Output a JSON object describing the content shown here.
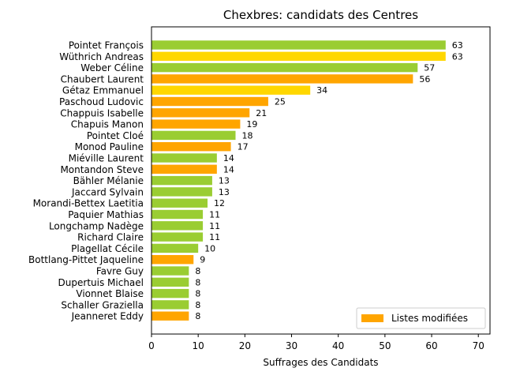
{
  "chart_data": {
    "type": "bar",
    "orientation": "horizontal",
    "title": "Chexbres: candidats des Centres",
    "xlabel": "Suffrages des Candidats",
    "ylabel": "",
    "xlim": [
      0,
      72.5
    ],
    "xticks": [
      0,
      10,
      20,
      30,
      40,
      50,
      60,
      70
    ],
    "grid": false,
    "legend": {
      "placement": "lower-right",
      "entries": [
        {
          "label": "Listes modifiées",
          "color": "#ffa500"
        }
      ]
    },
    "colors": {
      "green": "#9acd32",
      "gold": "#ffd700",
      "orange": "#ffa500"
    },
    "bars": [
      {
        "name": "Pointet François",
        "value": 63,
        "color": "green"
      },
      {
        "name": "Wüthrich Andreas",
        "value": 63,
        "color": "gold"
      },
      {
        "name": "Weber Céline",
        "value": 57,
        "color": "green"
      },
      {
        "name": "Chaubert Laurent",
        "value": 56,
        "color": "orange"
      },
      {
        "name": "Gétaz Emmanuel",
        "value": 34,
        "color": "gold"
      },
      {
        "name": "Paschoud Ludovic",
        "value": 25,
        "color": "orange"
      },
      {
        "name": "Chappuis Isabelle",
        "value": 21,
        "color": "orange"
      },
      {
        "name": "Chapuis Manon",
        "value": 19,
        "color": "orange"
      },
      {
        "name": "Pointet Cloé",
        "value": 18,
        "color": "green"
      },
      {
        "name": "Monod Pauline",
        "value": 17,
        "color": "orange"
      },
      {
        "name": "Miéville Laurent",
        "value": 14,
        "color": "green"
      },
      {
        "name": "Montandon Steve",
        "value": 14,
        "color": "orange"
      },
      {
        "name": "Bähler Mélanie",
        "value": 13,
        "color": "green"
      },
      {
        "name": "Jaccard Sylvain",
        "value": 13,
        "color": "green"
      },
      {
        "name": "Morandi-Bettex Laetitia",
        "value": 12,
        "color": "green"
      },
      {
        "name": "Paquier Mathias",
        "value": 11,
        "color": "green"
      },
      {
        "name": "Longchamp Nadège",
        "value": 11,
        "color": "green"
      },
      {
        "name": "Richard Claire",
        "value": 11,
        "color": "green"
      },
      {
        "name": "Plagellat Cécile",
        "value": 10,
        "color": "green"
      },
      {
        "name": "Bottlang-Pittet Jaqueline",
        "value": 9,
        "color": "orange"
      },
      {
        "name": "Favre Guy",
        "value": 8,
        "color": "green"
      },
      {
        "name": "Dupertuis Michael",
        "value": 8,
        "color": "green"
      },
      {
        "name": "Vionnet Blaise",
        "value": 8,
        "color": "green"
      },
      {
        "name": "Schaller Graziella",
        "value": 8,
        "color": "green"
      },
      {
        "name": "Jeanneret Eddy",
        "value": 8,
        "color": "orange"
      }
    ]
  }
}
